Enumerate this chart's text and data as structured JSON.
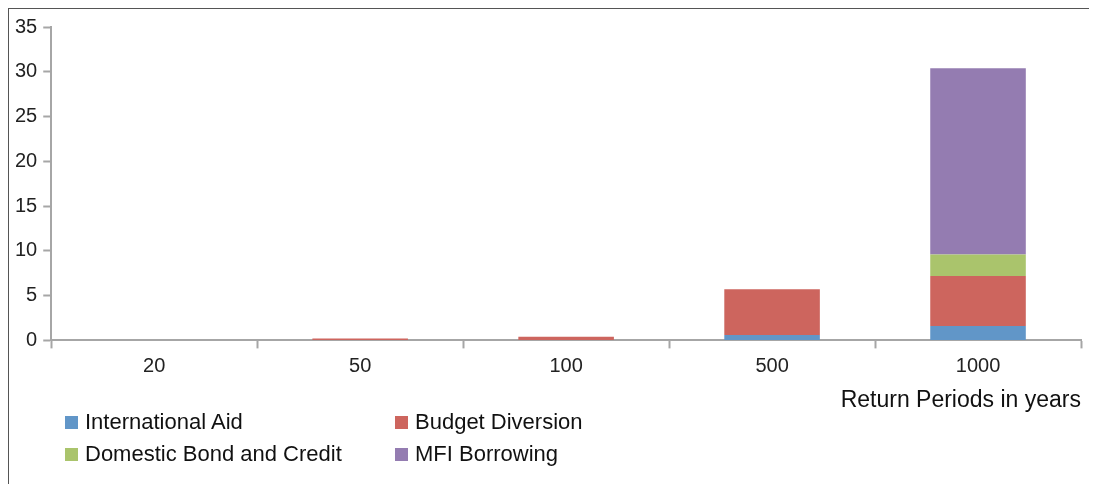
{
  "chart_data": {
    "type": "bar",
    "stacked": true,
    "xlabel": "Return Periods in years",
    "categories": [
      "20",
      "50",
      "100",
      "500",
      "1000"
    ],
    "series": [
      {
        "name": "International Aid",
        "color": "#6196c8",
        "values": [
          0,
          0,
          0,
          0.6,
          1.6
        ]
      },
      {
        "name": "Budget Diversion",
        "color": "#cd655e",
        "values": [
          0,
          0.2,
          0.4,
          5.1,
          5.6
        ]
      },
      {
        "name": "Domestic Bond and Credit",
        "color": "#aac46c",
        "values": [
          0,
          0,
          0,
          0,
          2.4
        ]
      },
      {
        "name": "MFI Borrowing",
        "color": "#947cb1",
        "values": [
          0,
          0,
          0,
          0,
          20.8
        ]
      }
    ],
    "ylim": [
      0,
      35
    ],
    "yticks": [
      0,
      5,
      10,
      15,
      20,
      25,
      30,
      35
    ],
    "grid": false,
    "legend": "bottom left"
  }
}
